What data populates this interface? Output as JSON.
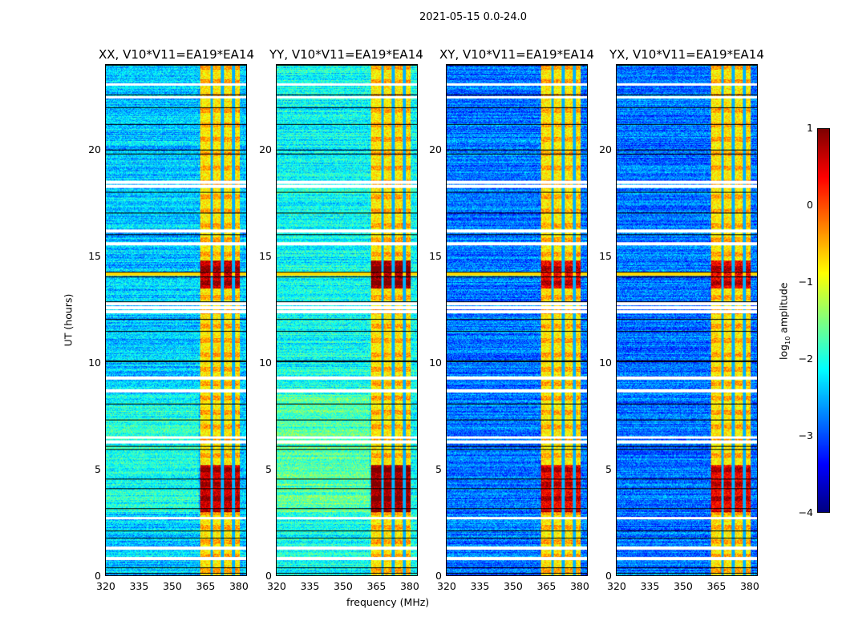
{
  "suptitle": "2021-05-15 0.0-24.0",
  "chart_data": {
    "type": "heatmap",
    "xlabel": "frequency (MHz)",
    "ylabel": "UT (hours)",
    "xlim": [
      320,
      384
    ],
    "ylim": [
      0,
      24
    ],
    "xticks": [
      "320",
      "335",
      "350",
      "365",
      "380"
    ],
    "xtick_values": [
      320,
      335,
      350,
      365,
      380
    ],
    "yticks": [
      "0",
      "5",
      "10",
      "15",
      "20"
    ],
    "ytick_values": [
      0,
      5,
      10,
      15,
      20
    ],
    "panels": [
      {
        "title": "XX, V10*V11=EA19*EA14",
        "background_level": -2.4,
        "strong_level": 0.6
      },
      {
        "title": "YY, V10*V11=EA19*EA14",
        "background_level": -2.1,
        "strong_level": 0.8
      },
      {
        "title": "XY, V10*V11=EA19*EA14",
        "background_level": -2.8,
        "strong_level": 0.4
      },
      {
        "title": "YX, V10*V11=EA19*EA14",
        "background_level": -2.8,
        "strong_level": 0.4
      }
    ],
    "rfi_band_mhz": [
      363,
      381
    ],
    "strong_intervals_hours": [
      [
        3,
        5.2
      ],
      [
        13.5,
        14.8
      ]
    ],
    "flagged_hours": [
      0.8,
      1.3,
      2.7,
      6.3,
      6.5,
      8.7,
      9.3,
      12.4,
      12.6,
      12.8,
      18.3,
      18.5,
      22.5,
      23.1,
      16.2,
      15.6
    ],
    "colorbar": {
      "label": "log10 amplitude",
      "ticks": [
        "1",
        "0",
        "−1",
        "−2",
        "−3",
        "−4"
      ],
      "tick_values": [
        1,
        0,
        -1,
        -2,
        -3,
        -4
      ],
      "range": [
        -4,
        1
      ],
      "colormap": "jet"
    }
  }
}
